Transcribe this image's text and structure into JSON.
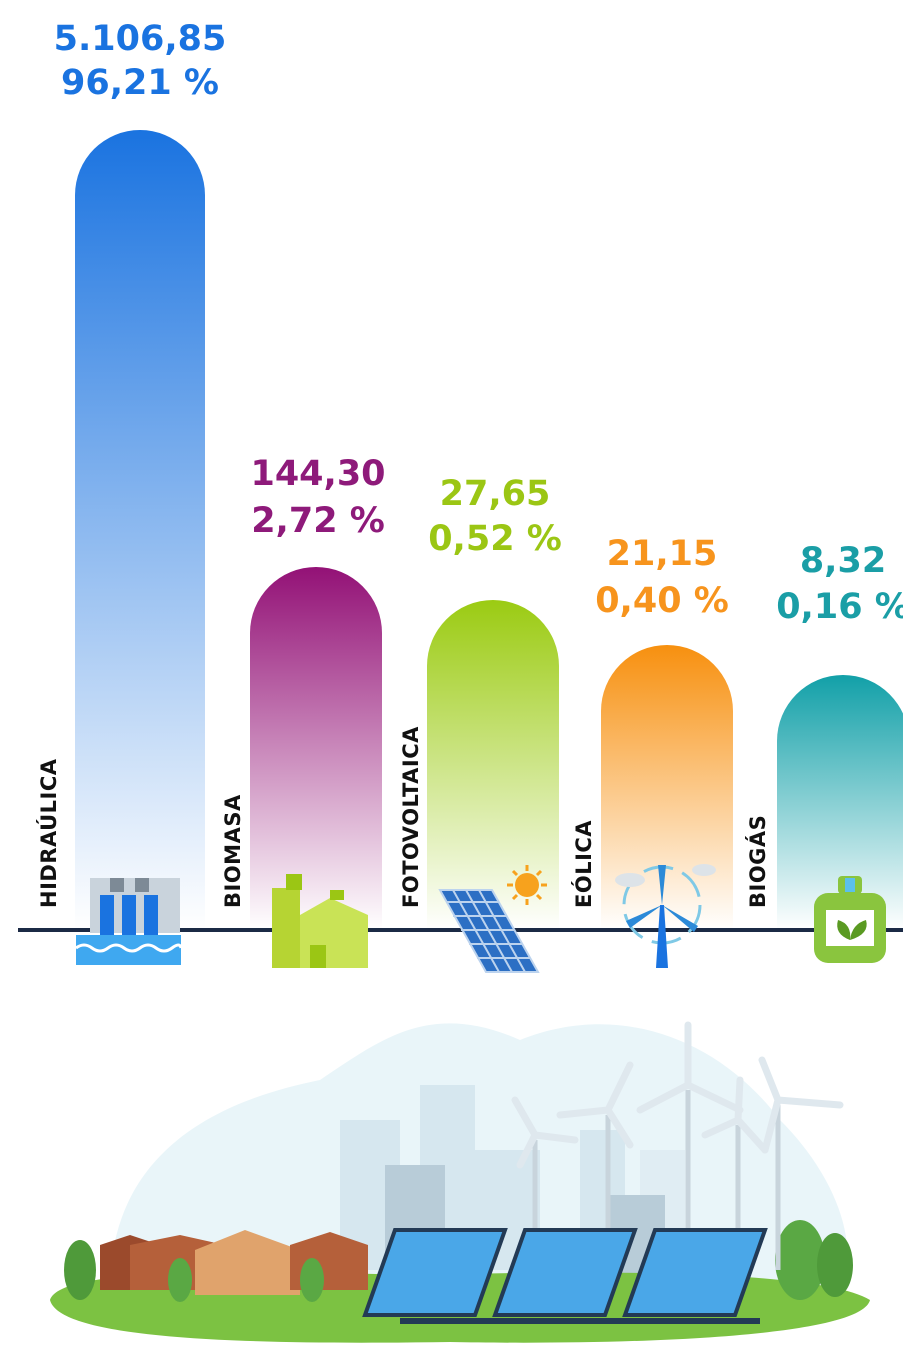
{
  "items": [
    {
      "label": "HIDRAÚLICA",
      "value": "5.106,85",
      "share": "96,21 %"
    },
    {
      "label": "BIOMASA",
      "value": "144,30",
      "share": "2,72 %"
    },
    {
      "label": "FOTOVOLTAICA",
      "value": "27,65",
      "share": "0,52 %"
    },
    {
      "label": "EÓLICA",
      "value": "21,15",
      "share": "0,40 %"
    },
    {
      "label": "BIOGÁS",
      "value": "8,32",
      "share": "0,16 %"
    }
  ]
}
